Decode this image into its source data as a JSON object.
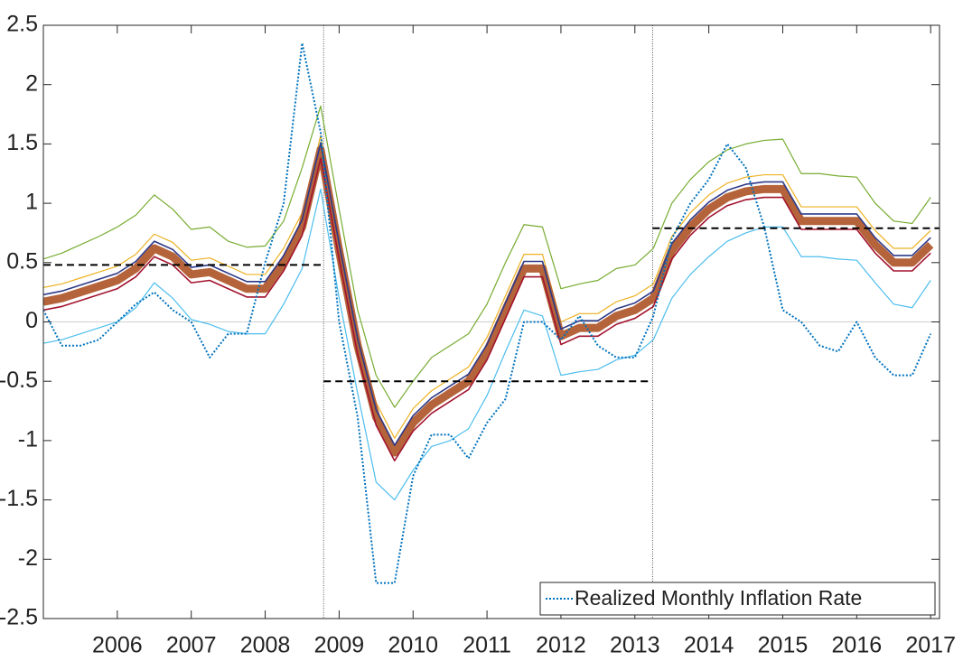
{
  "chart_data": {
    "type": "line",
    "x": [
      2005,
      2005.25,
      2005.5,
      2005.75,
      2006,
      2006.25,
      2006.5,
      2006.75,
      2007,
      2007.25,
      2007.5,
      2007.75,
      2008,
      2008.25,
      2008.5,
      2008.75,
      2009,
      2009.25,
      2009.5,
      2009.75,
      2010,
      2010.25,
      2010.5,
      2010.75,
      2011,
      2011.25,
      2011.5,
      2011.75,
      2012,
      2012.25,
      2012.5,
      2012.75,
      2013,
      2013.25,
      2013.5,
      2013.75,
      2014,
      2014.25,
      2014.5,
      2014.75,
      2015,
      2015.25,
      2015.5,
      2015.75,
      2016,
      2016.25,
      2016.5,
      2016.75,
      2017
    ],
    "series": [
      {
        "color": "#77AC30",
        "line_width": 1.2,
        "values": [
          0.53,
          0.58,
          0.65,
          0.72,
          0.8,
          0.9,
          1.07,
          0.95,
          0.78,
          0.8,
          0.68,
          0.63,
          0.64,
          0.85,
          1.3,
          1.82,
          0.95,
          0.1,
          -0.45,
          -0.72,
          -0.5,
          -0.3,
          -0.2,
          -0.1,
          0.15,
          0.5,
          0.82,
          0.8,
          0.28,
          0.32,
          0.35,
          0.45,
          0.48,
          0.62,
          1.0,
          1.2,
          1.35,
          1.45,
          1.5,
          1.53,
          1.54,
          1.25,
          1.25,
          1.23,
          1.22,
          1.0,
          0.85,
          0.83,
          1.05
        ]
      },
      {
        "color": "#4DBEEE",
        "line_width": 1.2,
        "values": [
          -0.18,
          -0.15,
          -0.1,
          -0.05,
          0.0,
          0.12,
          0.33,
          0.2,
          0.02,
          -0.02,
          -0.08,
          -0.1,
          -0.1,
          0.15,
          0.45,
          1.12,
          0.2,
          -0.6,
          -1.35,
          -1.5,
          -1.25,
          -1.05,
          -1.0,
          -0.9,
          -0.62,
          -0.25,
          0.1,
          0.05,
          -0.45,
          -0.42,
          -0.4,
          -0.32,
          -0.28,
          -0.15,
          0.2,
          0.4,
          0.55,
          0.68,
          0.75,
          0.8,
          0.8,
          0.55,
          0.55,
          0.53,
          0.52,
          0.33,
          0.15,
          0.12,
          0.35
        ]
      },
      {
        "color": "#EDB120",
        "line_width": 1.2,
        "values": [
          0.29,
          0.32,
          0.37,
          0.42,
          0.47,
          0.57,
          0.74,
          0.67,
          0.52,
          0.54,
          0.47,
          0.4,
          0.4,
          0.62,
          0.92,
          1.57,
          0.72,
          -0.08,
          -0.68,
          -0.98,
          -0.73,
          -0.58,
          -0.48,
          -0.38,
          -0.13,
          0.22,
          0.57,
          0.57,
          0.0,
          0.07,
          0.07,
          0.17,
          0.22,
          0.32,
          0.72,
          0.92,
          1.07,
          1.17,
          1.22,
          1.24,
          1.24,
          0.97,
          0.97,
          0.97,
          0.97,
          0.77,
          0.62,
          0.62,
          0.77
        ]
      },
      {
        "color": "#B5633A",
        "line_width": 9,
        "values": [
          0.17,
          0.2,
          0.25,
          0.3,
          0.35,
          0.45,
          0.62,
          0.55,
          0.4,
          0.42,
          0.35,
          0.28,
          0.28,
          0.5,
          0.8,
          1.45,
          0.6,
          -0.2,
          -0.8,
          -1.1,
          -0.85,
          -0.7,
          -0.6,
          -0.5,
          -0.25,
          0.1,
          0.45,
          0.45,
          -0.12,
          -0.05,
          -0.05,
          0.05,
          0.1,
          0.2,
          0.6,
          0.8,
          0.95,
          1.05,
          1.1,
          1.12,
          1.12,
          0.85,
          0.85,
          0.85,
          0.85,
          0.65,
          0.5,
          0.5,
          0.65
        ]
      },
      {
        "color": "#2E3A87",
        "line_width": 1.6,
        "values": [
          0.23,
          0.26,
          0.31,
          0.36,
          0.41,
          0.51,
          0.68,
          0.61,
          0.46,
          0.48,
          0.41,
          0.34,
          0.34,
          0.56,
          0.86,
          1.51,
          0.66,
          -0.14,
          -0.74,
          -1.04,
          -0.79,
          -0.64,
          -0.54,
          -0.44,
          -0.19,
          0.16,
          0.51,
          0.51,
          -0.06,
          0.01,
          0.01,
          0.11,
          0.16,
          0.26,
          0.66,
          0.86,
          1.01,
          1.11,
          1.16,
          1.18,
          1.18,
          0.91,
          0.91,
          0.91,
          0.91,
          0.71,
          0.56,
          0.56,
          0.71
        ]
      },
      {
        "color": "#A2142F",
        "line_width": 1.6,
        "values": [
          0.1,
          0.13,
          0.18,
          0.23,
          0.28,
          0.38,
          0.55,
          0.48,
          0.33,
          0.35,
          0.28,
          0.21,
          0.21,
          0.43,
          0.73,
          1.38,
          0.53,
          -0.27,
          -0.87,
          -1.17,
          -0.92,
          -0.77,
          -0.67,
          -0.57,
          -0.32,
          0.03,
          0.38,
          0.38,
          -0.19,
          -0.12,
          -0.12,
          -0.02,
          0.03,
          0.13,
          0.53,
          0.73,
          0.88,
          0.98,
          1.03,
          1.05,
          1.05,
          0.78,
          0.78,
          0.78,
          0.78,
          0.58,
          0.43,
          0.43,
          0.58
        ]
      },
      {
        "name": "Realized Monthly Inflation Rate",
        "color": "#0072BD",
        "line_width": 2,
        "style": "dotted",
        "values": [
          0.1,
          -0.2,
          -0.2,
          -0.15,
          0,
          0.15,
          0.25,
          0.1,
          0,
          -0.3,
          -0.1,
          -0.1,
          0.5,
          1.0,
          2.35,
          1.6,
          0,
          -0.8,
          -2.2,
          -2.2,
          -1.3,
          -0.95,
          -0.95,
          -1.15,
          -0.85,
          -0.65,
          0,
          0,
          -0.15,
          0.05,
          -0.2,
          -0.3,
          -0.3,
          0.05,
          0.7,
          1.0,
          1.2,
          1.5,
          1.3,
          0.8,
          0.1,
          0,
          -0.2,
          -0.25,
          0,
          -0.3,
          -0.45,
          -0.45,
          -0.1
        ]
      }
    ],
    "reference_lines": [
      {
        "x": [
          2005,
          2008.79
        ],
        "y": 0.48
      },
      {
        "x": [
          2008.79,
          2013.24
        ],
        "y": -0.5
      },
      {
        "x": [
          2013.24,
          2017.12
        ],
        "y": 0.79
      }
    ],
    "vlines": [
      2008.79,
      2013.24
    ],
    "hlines": [
      0
    ],
    "xlim": [
      2005,
      2017.12
    ],
    "xticks": [
      2006,
      2007,
      2008,
      2009,
      2010,
      2011,
      2012,
      2013,
      2014,
      2015,
      2016,
      2017
    ],
    "ylim": [
      -2.5,
      2.5
    ],
    "yticks": [
      -2.5,
      -2,
      -1.5,
      -1,
      -0.5,
      0,
      0.5,
      1,
      1.5,
      2,
      2.5
    ],
    "grid": false,
    "legend": "lower right"
  }
}
